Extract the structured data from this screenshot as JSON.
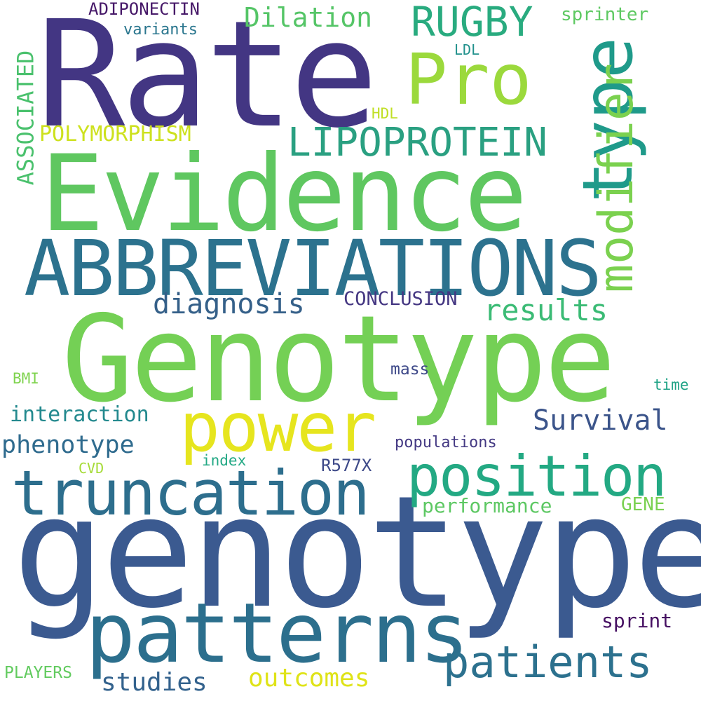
{
  "words": [
    {
      "text": "genotype",
      "color": "#3b5a90"
    },
    {
      "text": "Rate",
      "color": "#433683"
    },
    {
      "text": "Evidence",
      "color": "#5fc760"
    },
    {
      "text": "Genotype",
      "color": "#74d055"
    },
    {
      "text": "ABBREVIATIONS",
      "color": "#2c728e"
    },
    {
      "text": "patterns",
      "color": "#2c6f8d"
    },
    {
      "text": "power",
      "color": "#e6e51e"
    },
    {
      "text": "truncation",
      "color": "#2d6e8d"
    },
    {
      "text": "position",
      "color": "#23a983"
    },
    {
      "text": "type",
      "color": "#1f9a8a"
    },
    {
      "text": "modifier",
      "color": "#7bd14f"
    },
    {
      "text": "Pro",
      "color": "#9bd93c"
    },
    {
      "text": "LIPOPROTEIN",
      "color": "#2aa081"
    },
    {
      "text": "RUGBY",
      "color": "#29ab7f"
    },
    {
      "text": "patients",
      "color": "#2c718e"
    },
    {
      "text": "diagnosis",
      "color": "#356089"
    },
    {
      "text": "results",
      "color": "#3bbb75"
    },
    {
      "text": "Survival",
      "color": "#3b548a"
    },
    {
      "text": "phenotype",
      "color": "#2f6b8e"
    },
    {
      "text": "outcomes",
      "color": "#dfe318"
    },
    {
      "text": "studies",
      "color": "#33628d"
    },
    {
      "text": "Dilation",
      "color": "#55c567"
    },
    {
      "text": "ASSOCIATED",
      "color": "#4ac16d"
    },
    {
      "text": "POLYMORPHISM",
      "color": "#cde11d"
    },
    {
      "text": "interaction",
      "color": "#23898e"
    },
    {
      "text": "performance",
      "color": "#5dc863"
    },
    {
      "text": "CONCLUSION",
      "color": "#453782"
    },
    {
      "text": "sprint",
      "color": "#471163"
    },
    {
      "text": "ADIPONECTIN",
      "color": "#461868"
    },
    {
      "text": "R577X",
      "color": "#3e4a89"
    },
    {
      "text": "populations",
      "color": "#443983"
    },
    {
      "text": "sprinter",
      "color": "#5ec962"
    },
    {
      "text": "variants",
      "color": "#2a768e"
    },
    {
      "text": "GENE",
      "color": "#7ad151"
    },
    {
      "text": "PLAYERS",
      "color": "#62cb5f"
    },
    {
      "text": "mass",
      "color": "#3e4989"
    },
    {
      "text": "index",
      "color": "#22a884"
    },
    {
      "text": "time",
      "color": "#20a386"
    },
    {
      "text": "CVD",
      "color": "#a5db36"
    },
    {
      "text": "BMI",
      "color": "#7fd34e"
    },
    {
      "text": "HDL",
      "color": "#c0df25"
    },
    {
      "text": "LDL",
      "color": "#21918c"
    }
  ]
}
